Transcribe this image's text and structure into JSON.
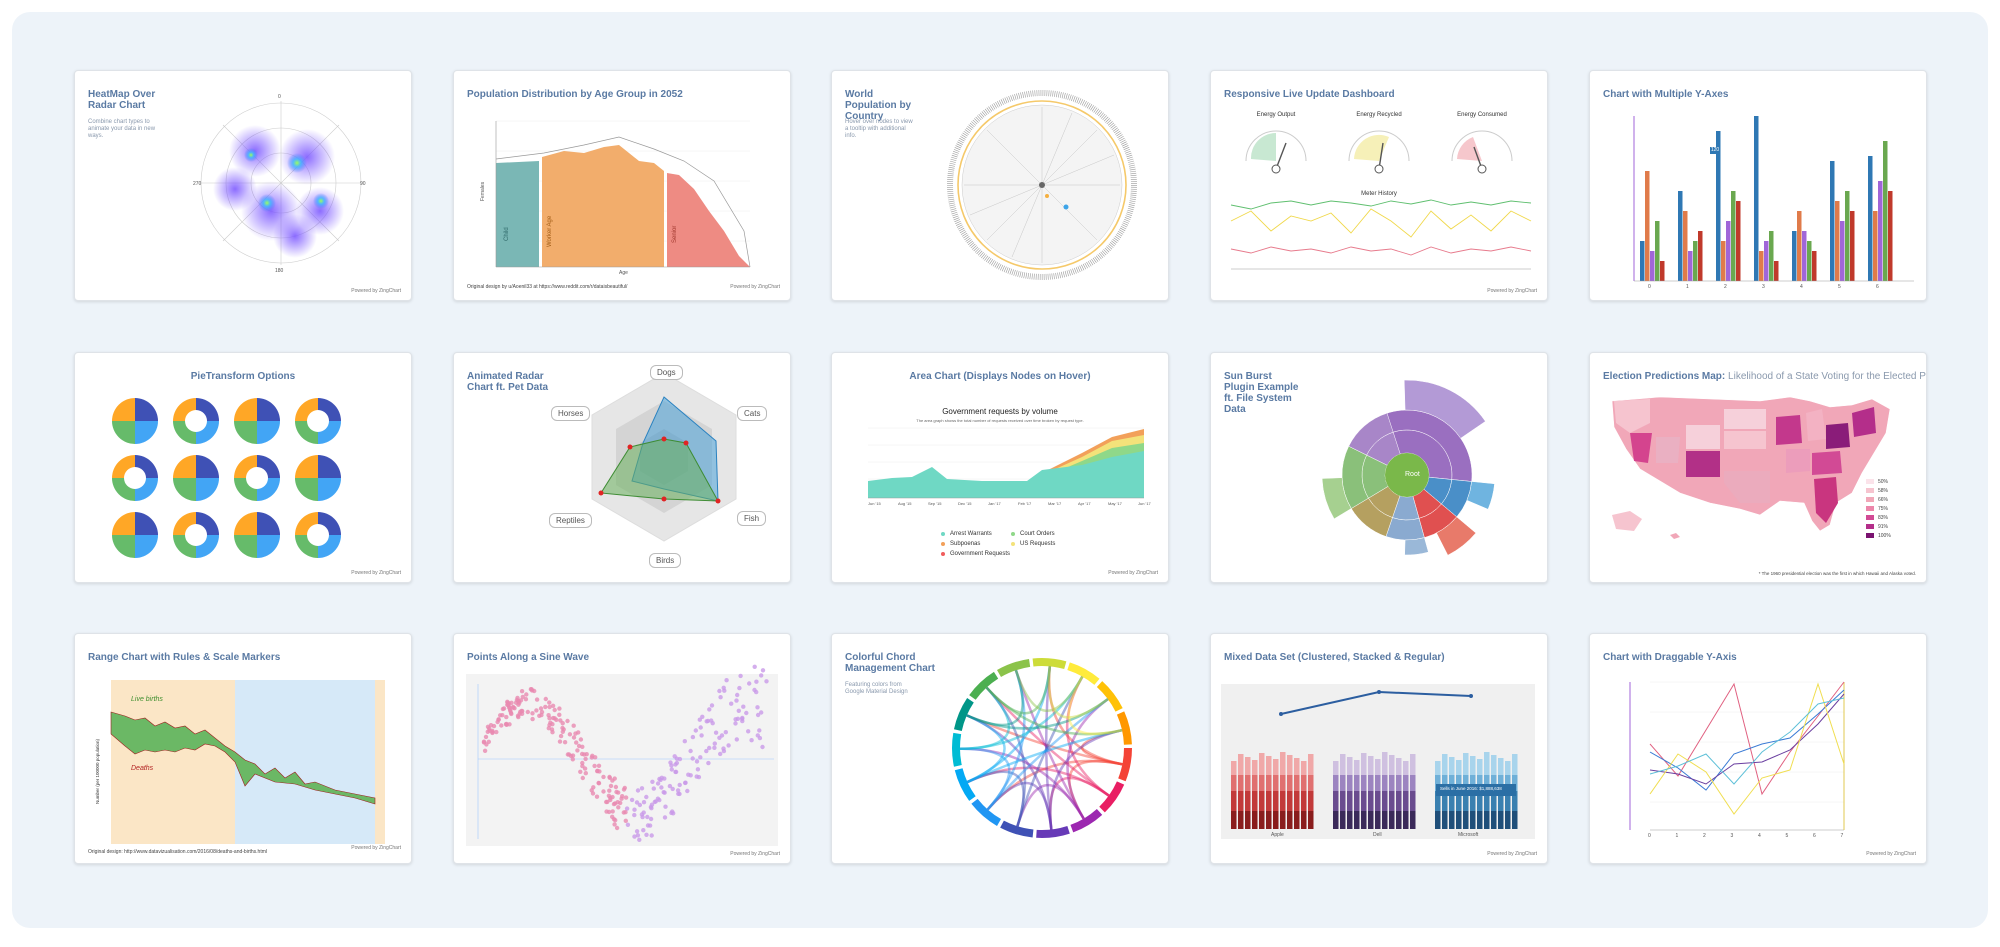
{
  "cards": [
    {
      "title": "HeatMap Over Radar Chart",
      "desc": "Combine chart types to animate your data in new ways.",
      "powered": "Powered by ZingChart"
    },
    {
      "title": "Population Distribution by Age Group in 2052",
      "labels": [
        "Child",
        "Worker Age",
        "Senior"
      ],
      "xlabel": "Age",
      "ylabel": "Females",
      "caption": "Original design by u/Aoenil33 at https://www.reddit.com/r/dataisbeautiful/",
      "powered": "Powered by ZingChart"
    },
    {
      "title": "World Population by Country",
      "desc": "Hover over nodes to view a tooltip with additional info."
    },
    {
      "title": "Responsive  Live Update Dashboard",
      "gauges": [
        "Energy Output",
        "Energy Recycled",
        "Energy Consumed"
      ],
      "meter_title": "Meter History",
      "powered": "Powered by ZingChart"
    },
    {
      "title": "Chart with Multiple Y-Axes",
      "x_ticks": [
        "0",
        "1",
        "2",
        "3",
        "4",
        "5",
        "6"
      ],
      "tooltip": "120"
    },
    {
      "title": "PieTransform Options",
      "powered": "Powered by ZingChart"
    },
    {
      "title": "Animated Radar Chart ft. Pet Data",
      "pets": [
        "Dogs",
        "Cats",
        "Fish",
        "Birds",
        "Reptiles",
        "Horses"
      ]
    },
    {
      "title": "Area Chart (Displays Nodes on Hover)",
      "chart_title": "Government requests by volume",
      "chart_sub": "The area graph shows the total number of requests received over time broken by request type.",
      "legend": [
        "Arrest Warrants",
        "Court Orders",
        "Subpoenas",
        "US Requests",
        "Government Requests"
      ],
      "x_ticks": [
        "Jun '15",
        "Aug '15",
        "Sep '15",
        "Dec '15",
        "Jan '17",
        "Feb '17",
        "Mar '17",
        "Apr '17",
        "May '17",
        "Jun '17"
      ],
      "powered": "Powered by ZingChart"
    },
    {
      "title": "Sun Burst Plugin Example ft. File System Data",
      "center": "Root"
    },
    {
      "title": "Election Predictions Map:",
      "subtitle": "Likelihood of a State Voting for the Elected President",
      "legend": [
        "50%",
        "58%",
        "66%",
        "75%",
        "83%",
        "91%",
        "100%"
      ],
      "footnote": "* The 1960 presidential election was the first in which Hawaii and Alaska voted."
    },
    {
      "title": "Range Chart with Rules & Scale Markers",
      "live": "Live births",
      "deaths": "Deaths",
      "ylabel": "Number (per 100000 population)",
      "caption": "Original design: http://www.datavizualisation.com/2016/08/deaths-and-births.html",
      "powered": "Powered by ZingChart"
    },
    {
      "title": "Points Along a Sine Wave",
      "powered": "Powered by ZingChart"
    },
    {
      "title": "Colorful Chord Management Chart",
      "desc": "Featuring colors from Google Material Design"
    },
    {
      "title": "Mixed Data Set (Clustered, Stacked & Regular)",
      "groups": [
        "Apple",
        "Dell",
        "Microsoft"
      ],
      "tooltip": "Sells in June 2016: $1,888,638",
      "powered": "Powered by ZingChart"
    },
    {
      "title": "Chart with Draggable Y-Axis",
      "x_ticks": [
        "0",
        "1",
        "2",
        "3",
        "4",
        "5",
        "6",
        "7"
      ],
      "powered": "Powered by ZingChart"
    }
  ]
}
